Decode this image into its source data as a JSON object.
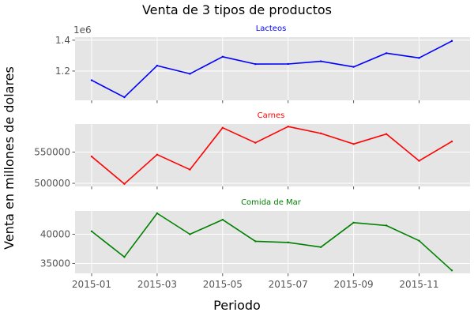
{
  "chart_data": {
    "type": "line",
    "title": "Venta de 3 tipos de productos",
    "xlabel": "Periodo",
    "ylabel": "Venta en millones de dolares",
    "grid": true,
    "x": [
      "2015-01",
      "2015-02",
      "2015-03",
      "2015-04",
      "2015-05",
      "2015-06",
      "2015-07",
      "2015-08",
      "2015-09",
      "2015-10",
      "2015-11",
      "2015-12"
    ],
    "x_ticks": [
      "2015-01",
      "2015-03",
      "2015-05",
      "2015-07",
      "2015-09",
      "2015-11"
    ],
    "panels": [
      {
        "name": "Lacteos",
        "color": "#0000ff",
        "values": [
          1140000,
          1030000,
          1235000,
          1182000,
          1293000,
          1245000,
          1246000,
          1263000,
          1227000,
          1316000,
          1285000,
          1395000
        ],
        "ylim": [
          1010000,
          1420000
        ],
        "yticks": [
          1200000,
          1400000
        ],
        "ytick_labels": [
          "1.2",
          "1.4"
        ],
        "offset_text": "1e6"
      },
      {
        "name": "Carnes",
        "color": "#ff0000",
        "values": [
          543000,
          499000,
          546000,
          522000,
          589000,
          565000,
          591000,
          580000,
          563000,
          579000,
          536000,
          567000
        ],
        "ylim": [
          495000,
          595000
        ],
        "yticks": [
          500000,
          550000
        ],
        "ytick_labels": [
          "500000",
          "550000"
        ]
      },
      {
        "name": "Comida de Mar",
        "color": "#008000",
        "values": [
          40500,
          36100,
          43600,
          40000,
          42500,
          38800,
          38600,
          37800,
          42000,
          41500,
          38900,
          33800
        ],
        "ylim": [
          33300,
          44000
        ],
        "yticks": [
          35000,
          40000
        ],
        "ytick_labels": [
          "35000",
          "40000"
        ]
      }
    ]
  }
}
